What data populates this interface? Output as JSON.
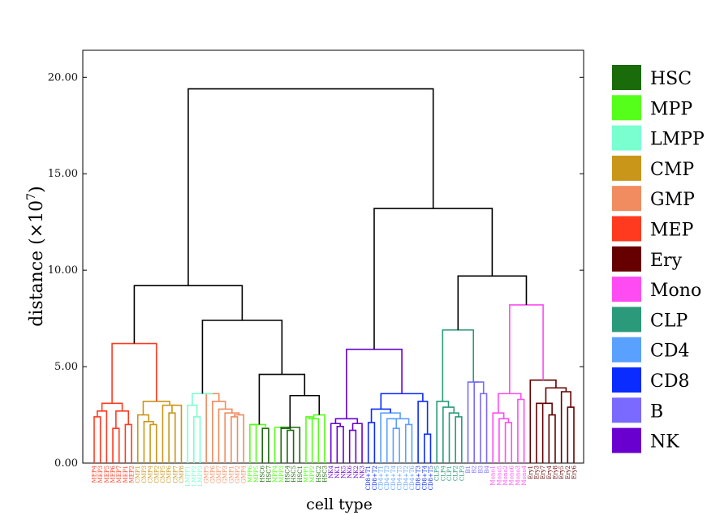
{
  "chart_data": {
    "type": "dendrogram",
    "title": "",
    "xlabel": "cell type",
    "ylabel": "distance (×10",
    "ylabel_exponent": "7",
    "ylabel_close": ")",
    "ylim": [
      0,
      21.4
    ],
    "yticks": [
      0,
      5,
      10,
      15,
      20
    ],
    "ytick_labels": [
      "0.00",
      "5.00",
      "10.00",
      "15.00",
      "20.00"
    ],
    "legend": [
      {
        "name": "HSC",
        "color": "#1a6b0a"
      },
      {
        "name": "MPP",
        "color": "#55ff1a"
      },
      {
        "name": "LMPP",
        "color": "#7affd0"
      },
      {
        "name": "CMP",
        "color": "#c9961a"
      },
      {
        "name": "GMP",
        "color": "#f08c60"
      },
      {
        "name": "MEP",
        "color": "#ff3a1f"
      },
      {
        "name": "Ery",
        "color": "#660000"
      },
      {
        "name": "Mono",
        "color": "#ff4cf2"
      },
      {
        "name": "CLP",
        "color": "#2a9a7a"
      },
      {
        "name": "CD4",
        "color": "#5aa0ff"
      },
      {
        "name": "CD8",
        "color": "#0a2cff"
      },
      {
        "name": "B",
        "color": "#7a6aff"
      },
      {
        "name": "NK",
        "color": "#6a00d0"
      }
    ],
    "leaves": [
      {
        "label": "MEP4",
        "group": "MEP"
      },
      {
        "label": "MEP3",
        "group": "MEP"
      },
      {
        "label": "MEP5",
        "group": "MEP"
      },
      {
        "label": "MEP6",
        "group": "MEP"
      },
      {
        "label": "MEP7",
        "group": "MEP"
      },
      {
        "label": "MEP1",
        "group": "MEP"
      },
      {
        "label": "MEP2",
        "group": "MEP"
      },
      {
        "label": "CMP1",
        "group": "CMP"
      },
      {
        "label": "CMP3",
        "group": "CMP"
      },
      {
        "label": "CMP4",
        "group": "CMP"
      },
      {
        "label": "CMP2",
        "group": "CMP"
      },
      {
        "label": "CMP5",
        "group": "CMP"
      },
      {
        "label": "CMP6",
        "group": "CMP"
      },
      {
        "label": "CMP7",
        "group": "CMP"
      },
      {
        "label": "CMP8",
        "group": "CMP"
      },
      {
        "label": "LMPP1",
        "group": "LMPP"
      },
      {
        "label": "LMPP2",
        "group": "LMPP"
      },
      {
        "label": "LMPP3",
        "group": "LMPP"
      },
      {
        "label": "GMP5",
        "group": "GMP"
      },
      {
        "label": "GMP6",
        "group": "GMP"
      },
      {
        "label": "GMP7",
        "group": "GMP"
      },
      {
        "label": "GMP3",
        "group": "GMP"
      },
      {
        "label": "GMP1",
        "group": "GMP"
      },
      {
        "label": "GMP2",
        "group": "GMP"
      },
      {
        "label": "GMP4",
        "group": "GMP"
      },
      {
        "label": "MPP6",
        "group": "MPP"
      },
      {
        "label": "MPP5",
        "group": "MPP"
      },
      {
        "label": "HSC6",
        "group": "HSC"
      },
      {
        "label": "HSC7",
        "group": "HSC"
      },
      {
        "label": "MPP4",
        "group": "MPP"
      },
      {
        "label": "MPP3",
        "group": "MPP"
      },
      {
        "label": "HSC4",
        "group": "HSC"
      },
      {
        "label": "HSC5",
        "group": "HSC"
      },
      {
        "label": "HSC1",
        "group": "HSC"
      },
      {
        "label": "MPP1",
        "group": "MPP"
      },
      {
        "label": "MPP2",
        "group": "MPP"
      },
      {
        "label": "HSC2",
        "group": "HSC"
      },
      {
        "label": "HSC3",
        "group": "HSC"
      },
      {
        "label": "NK4",
        "group": "NK"
      },
      {
        "label": "NK1",
        "group": "NK"
      },
      {
        "label": "NK5",
        "group": "NK"
      },
      {
        "label": "NK6",
        "group": "NK"
      },
      {
        "label": "NK2",
        "group": "NK"
      },
      {
        "label": "NK3",
        "group": "NK"
      },
      {
        "label": "CD8+T1",
        "group": "CD8"
      },
      {
        "label": "CD8+T2",
        "group": "CD8"
      },
      {
        "label": "CD4+T1",
        "group": "CD4"
      },
      {
        "label": "CD4+T3",
        "group": "CD4"
      },
      {
        "label": "CD4+T4",
        "group": "CD4"
      },
      {
        "label": "CD4+T5",
        "group": "CD4"
      },
      {
        "label": "CD4+T2",
        "group": "CD4"
      },
      {
        "label": "CD4+T6",
        "group": "CD4"
      },
      {
        "label": "CD8+T3",
        "group": "CD8"
      },
      {
        "label": "CD8+T4",
        "group": "CD8"
      },
      {
        "label": "CD8+T5",
        "group": "CD8"
      },
      {
        "label": "CLP5",
        "group": "CLP"
      },
      {
        "label": "CLP4",
        "group": "CLP"
      },
      {
        "label": "CLP1",
        "group": "CLP"
      },
      {
        "label": "CLP2",
        "group": "CLP"
      },
      {
        "label": "CLP3",
        "group": "CLP"
      },
      {
        "label": "B1",
        "group": "B"
      },
      {
        "label": "B2",
        "group": "B"
      },
      {
        "label": "B3",
        "group": "B"
      },
      {
        "label": "B4",
        "group": "B"
      },
      {
        "label": "Mono1",
        "group": "Mono"
      },
      {
        "label": "Mono5",
        "group": "Mono"
      },
      {
        "label": "Mono2",
        "group": "Mono"
      },
      {
        "label": "Mono6",
        "group": "Mono"
      },
      {
        "label": "Mono3",
        "group": "Mono"
      },
      {
        "label": "Mono4",
        "group": "Mono"
      },
      {
        "label": "Ery1",
        "group": "Ery"
      },
      {
        "label": "Ery3",
        "group": "Ery"
      },
      {
        "label": "Ery7",
        "group": "Ery"
      },
      {
        "label": "Ery4",
        "group": "Ery"
      },
      {
        "label": "Ery8",
        "group": "Ery"
      },
      {
        "label": "Ery5",
        "group": "Ery"
      },
      {
        "label": "Ery2",
        "group": "Ery"
      },
      {
        "label": "Ery6",
        "group": "Ery"
      }
    ],
    "merges": [
      {
        "a": "MEP4",
        "b": "MEP3",
        "h": 2.4,
        "group": "MEP"
      },
      {
        "a": "MEP6",
        "b": "MEP7",
        "h": 1.8,
        "group": "MEP"
      },
      {
        "a": "MEP1",
        "b": "MEP2",
        "h": 2.0,
        "group": "MEP"
      },
      {
        "a": 0,
        "b": "MEP5",
        "h": 2.7,
        "group": "MEP"
      },
      {
        "a": 1,
        "b": 2,
        "h": 2.7,
        "group": "MEP"
      },
      {
        "a": 3,
        "b": 4,
        "h": 3.1,
        "group": "MEP"
      },
      {
        "a": "CMP4",
        "b": "CMP2",
        "h": 2.0,
        "group": "CMP"
      },
      {
        "a": "CMP3",
        "b": 6,
        "h": 2.15,
        "group": "CMP"
      },
      {
        "a": "CMP1",
        "b": 7,
        "h": 2.5,
        "group": "CMP"
      },
      {
        "a": "CMP6",
        "b": "CMP7",
        "h": 2.6,
        "group": "CMP"
      },
      {
        "a": 9,
        "b": "CMP8",
        "h": 3.0,
        "group": "CMP"
      },
      {
        "a": "CMP5",
        "b": 10,
        "h": 3.0,
        "group": "CMP"
      },
      {
        "a": 8,
        "b": 11,
        "h": 3.2,
        "group": "CMP"
      },
      {
        "a": 5,
        "b": 12,
        "h": 6.2,
        "group": "MEP"
      },
      {
        "a": "LMPP2",
        "b": "LMPP3",
        "h": 2.4,
        "group": "LMPP"
      },
      {
        "a": "LMPP1",
        "b": 14,
        "h": 3.0,
        "group": "LMPP"
      },
      {
        "a": "GMP1",
        "b": "GMP2",
        "h": 2.4,
        "group": "GMP"
      },
      {
        "a": 16,
        "b": "GMP4",
        "h": 2.5,
        "group": "GMP"
      },
      {
        "a": "GMP3",
        "b": 17,
        "h": 2.6,
        "group": "GMP"
      },
      {
        "a": "GMP7",
        "b": 18,
        "h": 2.8,
        "group": "GMP"
      },
      {
        "a": "GMP6",
        "b": 19,
        "h": 3.2,
        "group": "GMP"
      },
      {
        "a": "GMP5",
        "b": 20,
        "h": 3.6,
        "group": "GMP"
      },
      {
        "a": 15,
        "b": 21,
        "h": 3.6,
        "group": "LMPP"
      },
      {
        "a": "MPP6",
        "b": "MPP5",
        "h": 2.0,
        "group": "MPP"
      },
      {
        "a": "HSC6",
        "b": "HSC7",
        "h": 1.8,
        "group": "HSC"
      },
      {
        "a": 23,
        "b": 24,
        "h": 2.0,
        "group": "MPP"
      },
      {
        "a": "HSC4",
        "b": "HSC5",
        "h": 1.7,
        "group": "HSC"
      },
      {
        "a": "MPP3",
        "b": 26,
        "h": 1.8,
        "group": "HSC"
      },
      {
        "a": "MPP4",
        "b": 27,
        "h": 1.85,
        "group": "MPP"
      },
      {
        "a": 28,
        "b": "HSC1",
        "h": 1.85,
        "group": "HSC"
      },
      {
        "a": "MPP1",
        "b": "MPP2",
        "h": 2.4,
        "group": "MPP"
      },
      {
        "a": 30,
        "b": "HSC2",
        "h": 2.3,
        "group": "MPP"
      },
      {
        "a": 31,
        "b": "HSC3",
        "h": 2.5,
        "group": "MPP"
      },
      {
        "a": 29,
        "b": 32,
        "h": 3.5,
        "group": "black"
      },
      {
        "a": 25,
        "b": 33,
        "h": 4.6,
        "group": "black"
      },
      {
        "a": 22,
        "b": 34,
        "h": 7.4,
        "group": "black"
      },
      {
        "a": 13,
        "b": 35,
        "h": 9.2,
        "group": "black"
      },
      {
        "a": "NK1",
        "b": "NK5",
        "h": 1.9,
        "group": "NK"
      },
      {
        "a": "NK4",
        "b": 37,
        "h": 2.05,
        "group": "NK"
      },
      {
        "a": "NK6",
        "b": "NK2",
        "h": 1.7,
        "group": "NK"
      },
      {
        "a": 39,
        "b": "NK3",
        "h": 2.05,
        "group": "NK"
      },
      {
        "a": 38,
        "b": 40,
        "h": 2.3,
        "group": "NK"
      },
      {
        "a": "CD8+T1",
        "b": "CD8+T2",
        "h": 2.1,
        "group": "CD8"
      },
      {
        "a": "CD4+T4",
        "b": "CD4+T5",
        "h": 1.8,
        "group": "CD4"
      },
      {
        "a": "CD4+T3",
        "b": 43,
        "h": 2.3,
        "group": "CD4"
      },
      {
        "a": "CD4+T2",
        "b": "CD4+T6",
        "h": 2.0,
        "group": "CD4"
      },
      {
        "a": 44,
        "b": 45,
        "h": 2.3,
        "group": "CD4"
      },
      {
        "a": "CD4+T1",
        "b": 46,
        "h": 2.6,
        "group": "CD4"
      },
      {
        "a": 42,
        "b": 47,
        "h": 2.8,
        "group": "CD8"
      },
      {
        "a": "CD8+T4",
        "b": "CD8+T5",
        "h": 1.5,
        "group": "CD8"
      },
      {
        "a": "CD8+T3",
        "b": 49,
        "h": 3.2,
        "group": "CD8"
      },
      {
        "a": 48,
        "b": 50,
        "h": 3.6,
        "group": "CD8"
      },
      {
        "a": 41,
        "b": 51,
        "h": 5.9,
        "group": "NK"
      },
      {
        "a": "CLP2",
        "b": "CLP3",
        "h": 2.4,
        "group": "CLP"
      },
      {
        "a": "CLP1",
        "b": 53,
        "h": 2.6,
        "group": "CLP"
      },
      {
        "a": "CLP4",
        "b": 54,
        "h": 2.9,
        "group": "CLP"
      },
      {
        "a": "CLP5",
        "b": 55,
        "h": 3.2,
        "group": "CLP"
      },
      {
        "a": "B3",
        "b": "B4",
        "h": 3.6,
        "group": "B"
      },
      {
        "a": "B2",
        "b": 57,
        "h": 4.2,
        "group": "B"
      },
      {
        "a": "B1",
        "b": 58,
        "h": 4.2,
        "group": "B"
      },
      {
        "a": 56,
        "b": 59,
        "h": 6.9,
        "group": "CLP"
      },
      {
        "a": "Mono2",
        "b": "Mono6",
        "h": 2.1,
        "group": "Mono"
      },
      {
        "a": "Mono5",
        "b": 61,
        "h": 2.3,
        "group": "Mono"
      },
      {
        "a": "Mono1",
        "b": 62,
        "h": 2.6,
        "group": "Mono"
      },
      {
        "a": "Mono3",
        "b": "Mono4",
        "h": 3.3,
        "group": "Mono"
      },
      {
        "a": 63,
        "b": 64,
        "h": 3.6,
        "group": "Mono"
      },
      {
        "a": "Ery3",
        "b": "Ery7",
        "h": 3.1,
        "group": "Ery"
      },
      {
        "a": "Ery4",
        "b": "Ery8",
        "h": 2.5,
        "group": "Ery"
      },
      {
        "a": 66,
        "b": 67,
        "h": 3.1,
        "group": "Ery"
      },
      {
        "a": "Ery2",
        "b": "Ery6",
        "h": 2.9,
        "group": "Ery"
      },
      {
        "a": "Ery5",
        "b": 69,
        "h": 3.7,
        "group": "Ery"
      },
      {
        "a": 68,
        "b": 70,
        "h": 3.9,
        "group": "Ery"
      },
      {
        "a": "Ery1",
        "b": 71,
        "h": 4.3,
        "group": "Ery"
      },
      {
        "a": 65,
        "b": 72,
        "h": 8.2,
        "group": "Mono"
      },
      {
        "a": 60,
        "b": 73,
        "h": 9.7,
        "group": "black"
      },
      {
        "a": 52,
        "b": 74,
        "h": 13.2,
        "group": "black"
      },
      {
        "a": 36,
        "b": 75,
        "h": 19.4,
        "group": "black"
      }
    ]
  }
}
